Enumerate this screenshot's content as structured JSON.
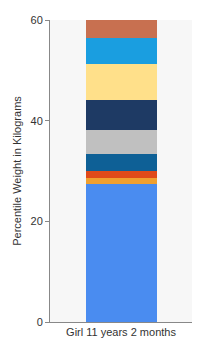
{
  "chart_data": {
    "type": "bar",
    "stacked": true,
    "y_label": "Percentile Weight in Kilograms",
    "categories": [
      "Girl 11 years 2 months"
    ],
    "series": [
      {
        "color": "#4a8cf0",
        "values": [
          27.4
        ]
      },
      {
        "color": "#f0a030",
        "values": [
          1.2
        ]
      },
      {
        "color": "#e04a1a",
        "values": [
          1.4
        ]
      },
      {
        "color": "#0e6096",
        "values": [
          3.4
        ]
      },
      {
        "color": "#c0c0c0",
        "values": [
          4.8
        ]
      },
      {
        "color": "#1e3a64",
        "values": [
          6
        ]
      },
      {
        "color": "#ffe08a",
        "values": [
          7
        ]
      },
      {
        "color": "#1a9ee0",
        "values": [
          5.2
        ]
      },
      {
        "color": "#c87050",
        "values": [
          3.6
        ]
      }
    ],
    "ylim": [
      0,
      60
    ],
    "yticks": [
      0,
      20,
      40,
      60
    ],
    "grid": false
  }
}
